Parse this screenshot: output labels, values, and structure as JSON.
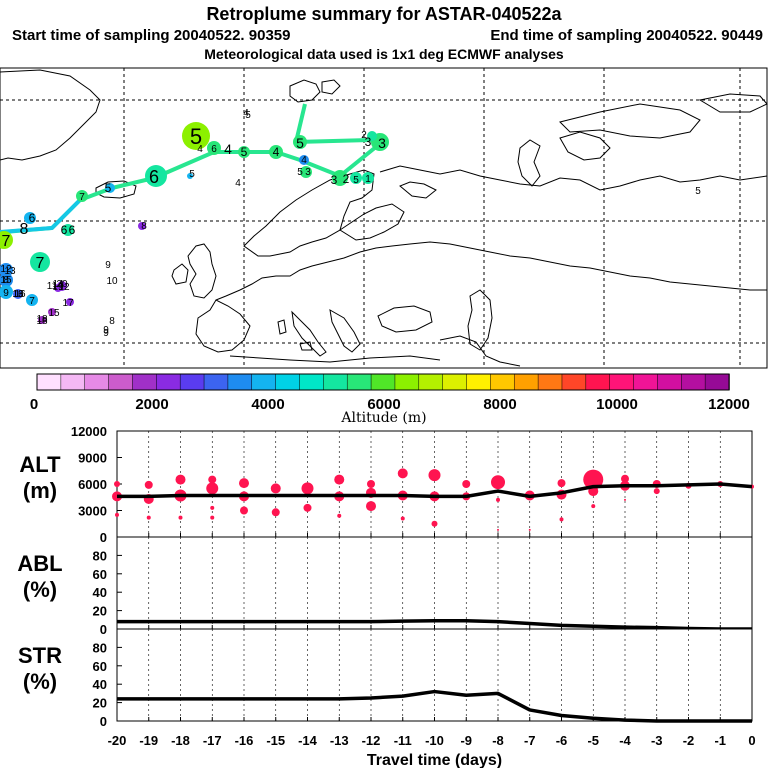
{
  "header": {
    "title": "Retroplume summary for ASTAR-040522a",
    "start_label": "Start time of sampling 20040522. 90359",
    "end_label": "End time of sampling 20040522. 90449",
    "met_label": "Meteorological data used is 1x1 deg ECMWF analyses"
  },
  "colorbar": {
    "label": "Altitude (m)",
    "ticks": [
      "0",
      "2000",
      "4000",
      "6000",
      "8000",
      "10000",
      "12000"
    ],
    "colors": [
      "#ffe0ff",
      "#f4b8f4",
      "#e68ae6",
      "#cc5ccc",
      "#a030c8",
      "#8a2be2",
      "#5a3cf0",
      "#3c64f0",
      "#1e8cf0",
      "#14b4f0",
      "#00d2e6",
      "#00e6c8",
      "#14e6a0",
      "#28e678",
      "#50e628",
      "#8cf000",
      "#b4f000",
      "#dcf000",
      "#fff000",
      "#ffc800",
      "#ffa000",
      "#ff7814",
      "#ff4628",
      "#ff1450",
      "#ff1478",
      "#f01496",
      "#d20fa0",
      "#b40fa0",
      "#960a96"
    ]
  },
  "map": {
    "time_labels": [
      "5",
      "4",
      "6",
      "4",
      "5",
      "4",
      "4",
      "4",
      "5",
      "4",
      "5",
      "3",
      "3",
      "2",
      "5",
      "1",
      "2",
      "3",
      "3",
      "6",
      "5",
      "5",
      "7",
      "8",
      "7",
      "6",
      "6",
      "7",
      "8",
      "6",
      "9",
      "10",
      "7",
      "8",
      "9",
      "9",
      "12",
      "13",
      "15",
      "16",
      "11",
      "12",
      "14",
      "17",
      "18",
      "15",
      "19",
      "20",
      "16",
      "18",
      "8",
      "9",
      "5",
      "13",
      "5"
    ]
  },
  "chart_data": [
    {
      "type": "line",
      "name": "ALT",
      "ylabel_line1": "ALT",
      "ylabel_line2": "(m)",
      "ylim": [
        0,
        12000
      ],
      "yticks": [
        "12000",
        "9000",
        "6000",
        "3000",
        "0"
      ],
      "x": [
        -20,
        -19,
        -18,
        -17,
        -16,
        -15,
        -14,
        -13,
        -12,
        -11,
        -10,
        -9,
        -8,
        -7,
        -6,
        -5,
        -4,
        -3,
        -2,
        -1,
        0
      ],
      "values": [
        4600,
        4600,
        4700,
        4700,
        4700,
        4700,
        4700,
        4700,
        4700,
        4700,
        4600,
        4600,
        5200,
        4600,
        5000,
        5700,
        5800,
        5800,
        5900,
        6000,
        5700
      ],
      "clusters": [
        [
          [
            -20,
            4600,
            5
          ],
          [
            -20,
            6000,
            3
          ],
          [
            -20,
            2500,
            2
          ],
          [
            -19,
            5900,
            4
          ],
          [
            -19,
            4300,
            5
          ],
          [
            -19,
            2200,
            2
          ],
          [
            -18,
            6500,
            5
          ],
          [
            -18,
            4700,
            6
          ],
          [
            -18,
            2200,
            2
          ],
          [
            -17,
            6500,
            4
          ],
          [
            -17,
            5500,
            6
          ],
          [
            -17,
            3300,
            2
          ],
          [
            -17,
            2200,
            2
          ],
          [
            -16,
            6100,
            5
          ],
          [
            -16,
            4600,
            5
          ],
          [
            -16,
            3000,
            4
          ],
          [
            -15,
            5500,
            5
          ],
          [
            -15,
            2800,
            4
          ],
          [
            -14,
            5500,
            6
          ],
          [
            -14,
            3300,
            4
          ],
          [
            -13,
            6500,
            5
          ],
          [
            -13,
            4600,
            5
          ],
          [
            -13,
            2400,
            2
          ],
          [
            -12,
            6000,
            4
          ],
          [
            -12,
            5000,
            5
          ],
          [
            -12,
            3500,
            5
          ],
          [
            -11,
            7200,
            5
          ],
          [
            -11,
            4700,
            5
          ],
          [
            -11,
            2100,
            2
          ],
          [
            -10,
            7000,
            6
          ],
          [
            -10,
            4600,
            5
          ],
          [
            -10,
            1500,
            3
          ],
          [
            -9,
            6000,
            4
          ],
          [
            -9,
            4600,
            4
          ],
          [
            -8,
            6200,
            7
          ],
          [
            -8,
            4200,
            2
          ],
          [
            -8,
            800,
            1
          ],
          [
            -7,
            4700,
            5
          ],
          [
            -7,
            800,
            1
          ],
          [
            -6,
            6100,
            4
          ],
          [
            -6,
            4800,
            5
          ],
          [
            -6,
            2000,
            2
          ],
          [
            -5,
            6500,
            10
          ],
          [
            -5,
            5200,
            5
          ],
          [
            -5,
            3500,
            2
          ],
          [
            -4,
            6600,
            4
          ],
          [
            -4,
            5800,
            5
          ],
          [
            -4,
            4200,
            1
          ],
          [
            -3,
            6000,
            4
          ],
          [
            -3,
            5200,
            3
          ],
          [
            -2,
            5800,
            3
          ],
          [
            -1,
            6000,
            3
          ],
          [
            0,
            5700,
            2
          ]
        ]
      ]
    },
    {
      "type": "line",
      "name": "ABL",
      "ylabel_line1": "ABL",
      "ylabel_line2": "(%)",
      "ylim": [
        0,
        100
      ],
      "yticks": [
        "80",
        "60",
        "40",
        "20",
        "0"
      ],
      "x": [
        -20,
        -19,
        -18,
        -17,
        -16,
        -15,
        -14,
        -13,
        -12,
        -11,
        -10,
        -9,
        -8,
        -7,
        -6,
        -5,
        -4,
        -3,
        -2,
        -1,
        0
      ],
      "values": [
        8,
        8,
        8,
        8,
        8,
        8,
        8,
        8,
        8,
        8.5,
        9,
        9,
        8,
        6,
        4,
        3,
        2,
        1.5,
        0.5,
        0,
        0
      ]
    },
    {
      "type": "line",
      "name": "STR",
      "ylabel_line1": "STR",
      "ylabel_line2": "(%)",
      "ylim": [
        0,
        100
      ],
      "yticks": [
        "80",
        "60",
        "40",
        "20",
        "0"
      ],
      "xlabel": "Travel time (days)",
      "xticks": [
        "-20",
        "-19",
        "-18",
        "-17",
        "-16",
        "-15",
        "-14",
        "-13",
        "-12",
        "-11",
        "-10",
        "-9",
        "-8",
        "-7",
        "-6",
        "-5",
        "-4",
        "-3",
        "-2",
        "-1",
        "0"
      ],
      "x": [
        -20,
        -19,
        -18,
        -17,
        -16,
        -15,
        -14,
        -13,
        -12,
        -11,
        -10,
        -9,
        -8,
        -7,
        -6,
        -5,
        -4,
        -3,
        -2,
        -1,
        0
      ],
      "values": [
        24,
        24,
        24,
        24,
        24,
        24,
        24,
        24,
        25,
        27,
        32,
        28,
        30,
        12,
        6,
        3,
        1,
        0,
        0,
        0,
        0
      ]
    }
  ]
}
